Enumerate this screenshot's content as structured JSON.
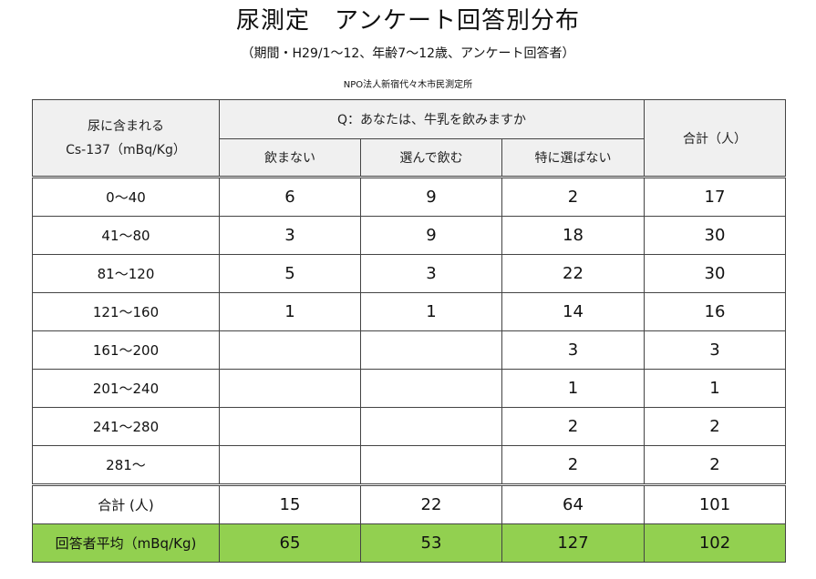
{
  "title": "尿測定　アンケート回答別分布",
  "subtitle": "（期間・H29/1～12、年齢7～12歳、アンケート回答者）",
  "organization": "NPO法人新宿代々木市民測定所",
  "table": {
    "corner_line1": "尿に含まれる",
    "corner_line2": "Cs-137（mBq/Kg）",
    "question": "Q：あなたは、牛乳を飲みますか",
    "total_header": "合計（人）",
    "columns": [
      "飲まない",
      "選んで飲む",
      "特に選ばない"
    ],
    "rows": [
      {
        "range": "0～40",
        "c1": "6",
        "c2": "9",
        "c3": "2",
        "total": "17"
      },
      {
        "range": "41～80",
        "c1": "3",
        "c2": "9",
        "c3": "18",
        "total": "30"
      },
      {
        "range": "81～120",
        "c1": "5",
        "c2": "3",
        "c3": "22",
        "total": "30"
      },
      {
        "range": "121～160",
        "c1": "1",
        "c2": "1",
        "c3": "14",
        "total": "16"
      },
      {
        "range": "161～200",
        "c1": "",
        "c2": "",
        "c3": "3",
        "total": "3"
      },
      {
        "range": "201～240",
        "c1": "",
        "c2": "",
        "c3": "1",
        "total": "1"
      },
      {
        "range": "241～280",
        "c1": "",
        "c2": "",
        "c3": "2",
        "total": "2"
      },
      {
        "range": "281～",
        "c1": "",
        "c2": "",
        "c3": "2",
        "total": "2"
      }
    ],
    "total_row": {
      "label": "合計 (人)",
      "c1": "15",
      "c2": "22",
      "c3": "64",
      "total": "101"
    },
    "avg_row": {
      "label": "回答者平均（mBq/Kg)",
      "c1": "65",
      "c2": "53",
      "c3": "127",
      "total": "102"
    },
    "highlight_color": "#92d050"
  }
}
